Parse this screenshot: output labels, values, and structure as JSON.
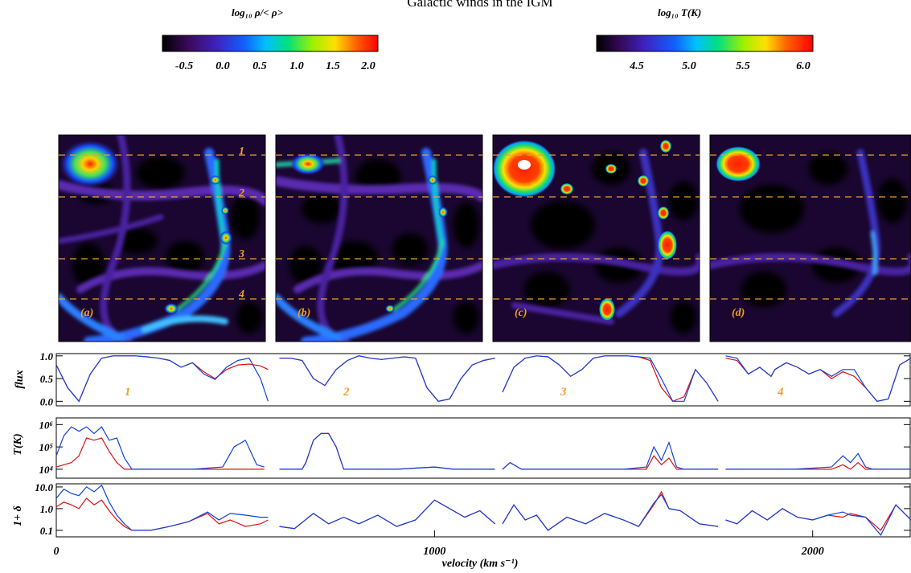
{
  "figure": {
    "title": "Galactic winds in the IGM"
  },
  "colorbars": [
    {
      "label": "log₁₀ ρ/< ρ>",
      "ticks": [
        "-0.5",
        "0.0",
        "0.5",
        "1.0",
        "1.5",
        "2.0"
      ]
    },
    {
      "label": "log₁₀ T(K)",
      "ticks": [
        "4.5",
        "5.0",
        "5.5",
        "6.0"
      ]
    }
  ],
  "maps": [
    {
      "label": "(a)",
      "line_labels": [
        "1",
        "2",
        "3",
        "4"
      ]
    },
    {
      "label": "(b)",
      "line_labels": []
    },
    {
      "label": "(c)",
      "line_labels": []
    },
    {
      "label": "(d)",
      "line_labels": []
    }
  ],
  "colors": {
    "red": "#e01010",
    "blue": "#1040e0",
    "orange": "#f0a020",
    "dashed": "#e8a030"
  },
  "chart_data": [
    {
      "type": "line",
      "panel": "flux",
      "ylabel": "flux",
      "ylim": [
        -0.1,
        1.05
      ],
      "yticks": [
        "0.0",
        "0.5",
        "1.0"
      ],
      "segment_labels": [
        "1",
        "2",
        "3",
        "4"
      ],
      "segments": [
        {
          "x": [
            0,
            30,
            60,
            90,
            120,
            150,
            180,
            210,
            240,
            270,
            300,
            330,
            360,
            390,
            420,
            450,
            480,
            510,
            540,
            560
          ],
          "red": [
            0.8,
            0.3,
            0.0,
            0.6,
            0.95,
            1.0,
            1.0,
            1.0,
            0.98,
            0.95,
            0.9,
            0.75,
            0.85,
            0.65,
            0.5,
            0.7,
            0.8,
            0.82,
            0.78,
            0.7
          ],
          "blue": [
            0.8,
            0.3,
            0.0,
            0.6,
            0.95,
            1.0,
            1.0,
            1.0,
            0.98,
            0.95,
            0.9,
            0.75,
            0.85,
            0.6,
            0.48,
            0.75,
            0.9,
            0.95,
            0.5,
            0.0
          ]
        },
        {
          "x": [
            590,
            620,
            650,
            680,
            710,
            740,
            770,
            800,
            830,
            860,
            890,
            920,
            950,
            980,
            1010,
            1040,
            1070,
            1100,
            1130,
            1160
          ],
          "red": [
            0.95,
            0.95,
            0.9,
            0.5,
            0.35,
            0.7,
            0.9,
            1.0,
            0.95,
            0.92,
            0.95,
            0.98,
            0.95,
            0.3,
            0.0,
            0.05,
            0.5,
            0.8,
            0.9,
            0.95
          ],
          "blue": [
            0.95,
            0.95,
            0.9,
            0.5,
            0.35,
            0.7,
            0.9,
            1.0,
            0.95,
            0.92,
            0.95,
            0.98,
            0.95,
            0.3,
            0.0,
            0.05,
            0.5,
            0.8,
            0.9,
            0.95
          ]
        },
        {
          "x": [
            1180,
            1210,
            1240,
            1270,
            1300,
            1330,
            1360,
            1390,
            1420,
            1450,
            1480,
            1510,
            1540,
            1570,
            1600,
            1630,
            1660,
            1690,
            1720,
            1750
          ],
          "red": [
            0.2,
            0.75,
            0.95,
            1.0,
            0.98,
            0.8,
            0.55,
            0.7,
            0.95,
            1.0,
            1.0,
            1.0,
            0.98,
            0.9,
            0.3,
            0.0,
            0.1,
            0.7,
            0.4,
            0.0
          ],
          "blue": [
            0.2,
            0.75,
            0.95,
            1.0,
            0.98,
            0.8,
            0.55,
            0.7,
            0.95,
            1.0,
            1.0,
            1.0,
            0.98,
            0.95,
            0.5,
            0.0,
            0.0,
            0.7,
            0.4,
            0.0
          ]
        },
        {
          "x": [
            1770,
            1800,
            1830,
            1860,
            1890,
            1900,
            1930,
            1960,
            1990,
            2020,
            2050,
            2080,
            2110,
            2140,
            2170,
            2200,
            2230,
            2260
          ],
          "red": [
            0.95,
            0.9,
            0.6,
            0.75,
            0.55,
            0.7,
            0.85,
            0.75,
            0.6,
            0.7,
            0.5,
            0.65,
            0.55,
            0.3,
            0.0,
            0.05,
            0.8,
            0.95
          ],
          "blue": [
            1.0,
            0.95,
            0.6,
            0.75,
            0.55,
            0.7,
            0.85,
            0.75,
            0.6,
            0.7,
            0.55,
            0.7,
            0.7,
            0.3,
            0.0,
            0.05,
            0.8,
            0.95
          ]
        }
      ]
    },
    {
      "type": "line",
      "panel": "temperature",
      "ylabel": "T(K)",
      "ylim": [
        3.6,
        6.3
      ],
      "yticks": [
        "10⁴",
        "10⁵",
        "10⁶"
      ],
      "segments": [
        {
          "x": [
            0,
            20,
            40,
            60,
            80,
            100,
            120,
            140,
            160,
            180,
            200,
            240,
            300,
            360,
            400,
            440,
            470,
            500,
            530,
            550
          ],
          "red": [
            4.1,
            4.2,
            4.3,
            4.6,
            5.4,
            5.3,
            5.4,
            4.8,
            4.3,
            4.0,
            4.0,
            4.0,
            4.0,
            4.0,
            4.0,
            4.0,
            4.0,
            4.0,
            4.0,
            4.0
          ],
          "blue": [
            4.6,
            5.5,
            5.9,
            5.7,
            5.9,
            5.6,
            5.9,
            5.3,
            5.4,
            4.5,
            4.0,
            4.0,
            4.0,
            4.0,
            4.05,
            4.1,
            5.0,
            5.3,
            4.2,
            4.1
          ]
        },
        {
          "x": [
            590,
            620,
            650,
            660,
            680,
            700,
            720,
            740,
            760,
            800,
            900,
            1000,
            1050,
            1100,
            1160
          ],
          "red": [
            4.0,
            4.0,
            4.0,
            4.3,
            5.3,
            5.6,
            5.6,
            5.0,
            4.0,
            4.0,
            4.0,
            4.1,
            4.0,
            4.0,
            4.0
          ],
          "blue": [
            4.0,
            4.0,
            4.0,
            4.3,
            5.3,
            5.6,
            5.6,
            5.0,
            4.0,
            4.0,
            4.0,
            4.1,
            4.0,
            4.0,
            4.0
          ]
        },
        {
          "x": [
            1180,
            1200,
            1230,
            1260,
            1300,
            1400,
            1500,
            1560,
            1580,
            1600,
            1620,
            1640,
            1660,
            1700,
            1750
          ],
          "red": [
            4.0,
            4.3,
            4.0,
            4.0,
            4.0,
            4.0,
            4.0,
            4.0,
            4.6,
            4.2,
            4.5,
            4.0,
            4.0,
            4.0,
            4.0
          ],
          "blue": [
            4.0,
            4.3,
            4.0,
            4.0,
            4.0,
            4.0,
            4.0,
            4.1,
            5.0,
            4.4,
            5.2,
            4.1,
            4.0,
            4.0,
            4.0
          ]
        },
        {
          "x": [
            1770,
            1850,
            1950,
            2050,
            2080,
            2100,
            2120,
            2140,
            2160,
            2200,
            2260
          ],
          "red": [
            4.0,
            4.0,
            4.0,
            4.0,
            4.2,
            4.0,
            4.3,
            4.0,
            4.0,
            4.0,
            4.0
          ],
          "blue": [
            4.0,
            4.0,
            4.0,
            4.1,
            4.6,
            4.3,
            4.7,
            4.1,
            4.0,
            4.0,
            4.0
          ]
        }
      ]
    },
    {
      "type": "line",
      "panel": "overdensity",
      "ylabel": "1+ δ",
      "ylim": [
        0.05,
        14
      ],
      "yscale": "log",
      "yticks": [
        "0.1",
        "1.0",
        "10.0"
      ],
      "segments": [
        {
          "x": [
            0,
            20,
            40,
            60,
            80,
            100,
            120,
            140,
            160,
            180,
            200,
            250,
            300,
            350,
            400,
            430,
            460,
            500,
            540,
            560
          ],
          "red": [
            1.2,
            2.0,
            1.5,
            1.0,
            3.0,
            1.5,
            2.5,
            0.8,
            0.3,
            0.15,
            0.1,
            0.1,
            0.15,
            0.25,
            0.6,
            0.2,
            0.3,
            0.15,
            0.2,
            0.3
          ],
          "blue": [
            3.0,
            8.0,
            5.0,
            4.0,
            10.0,
            6.0,
            12.0,
            2.0,
            0.5,
            0.2,
            0.1,
            0.1,
            0.15,
            0.25,
            0.7,
            0.3,
            0.6,
            0.5,
            0.4,
            0.4
          ]
        },
        {
          "x": [
            590,
            630,
            680,
            720,
            760,
            800,
            850,
            900,
            950,
            1000,
            1040,
            1080,
            1120,
            1160
          ],
          "red": [
            0.15,
            0.12,
            0.6,
            0.2,
            0.4,
            0.2,
            0.5,
            0.15,
            0.3,
            2.5,
            1.0,
            0.4,
            0.8,
            0.2
          ],
          "blue": [
            0.15,
            0.12,
            0.6,
            0.2,
            0.4,
            0.2,
            0.5,
            0.15,
            0.3,
            2.5,
            1.0,
            0.4,
            0.8,
            0.2
          ]
        },
        {
          "x": [
            1180,
            1210,
            1240,
            1270,
            1300,
            1350,
            1400,
            1450,
            1500,
            1540,
            1580,
            1600,
            1620,
            1650,
            1700,
            1750
          ],
          "red": [
            0.2,
            1.5,
            0.3,
            0.5,
            0.1,
            0.4,
            0.2,
            0.6,
            0.3,
            0.15,
            1.5,
            6.0,
            1.0,
            0.8,
            0.2,
            0.15
          ],
          "blue": [
            0.2,
            1.5,
            0.3,
            0.5,
            0.1,
            0.4,
            0.2,
            0.6,
            0.3,
            0.15,
            1.8,
            4.5,
            1.0,
            0.8,
            0.2,
            0.15
          ]
        },
        {
          "x": [
            1770,
            1800,
            1840,
            1880,
            1920,
            1960,
            2000,
            2040,
            2080,
            2100,
            2140,
            2180,
            2220,
            2260
          ],
          "red": [
            0.3,
            0.2,
            0.8,
            0.3,
            1.0,
            0.4,
            0.3,
            0.5,
            0.4,
            0.6,
            0.4,
            0.1,
            1.5,
            0.3
          ],
          "blue": [
            0.3,
            0.2,
            0.8,
            0.3,
            1.0,
            0.4,
            0.3,
            0.5,
            0.7,
            0.5,
            0.4,
            0.06,
            1.5,
            0.3
          ]
        }
      ]
    }
  ],
  "xaxis": {
    "label": "velocity (km s⁻¹)",
    "range": [
      0,
      2260
    ],
    "ticks": [
      {
        "value": 0,
        "label": "0"
      },
      {
        "value": 1000,
        "label": "1000"
      },
      {
        "value": 2000,
        "label": "2000"
      }
    ]
  }
}
